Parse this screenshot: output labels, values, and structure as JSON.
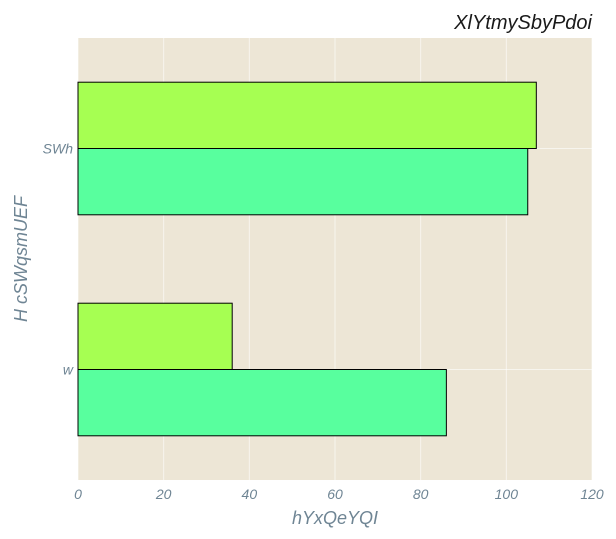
{
  "chart_data": {
    "type": "bar",
    "orientation": "horizontal",
    "title": "XlYtmySbyPdoi",
    "xlabel": "hYxQeYQI",
    "ylabel": "H cSWqsmUEF",
    "categories": [
      "w",
      "SWh"
    ],
    "series": [
      {
        "values": [
          36,
          107
        ],
        "color": "#a6ff52"
      },
      {
        "values": [
          86,
          105
        ],
        "color": "#58ff9e"
      }
    ],
    "xlim": [
      0,
      120
    ],
    "xticks": [
      0,
      20,
      40,
      60,
      80,
      100,
      120
    ],
    "grid": true,
    "background": "#ede6d6"
  }
}
